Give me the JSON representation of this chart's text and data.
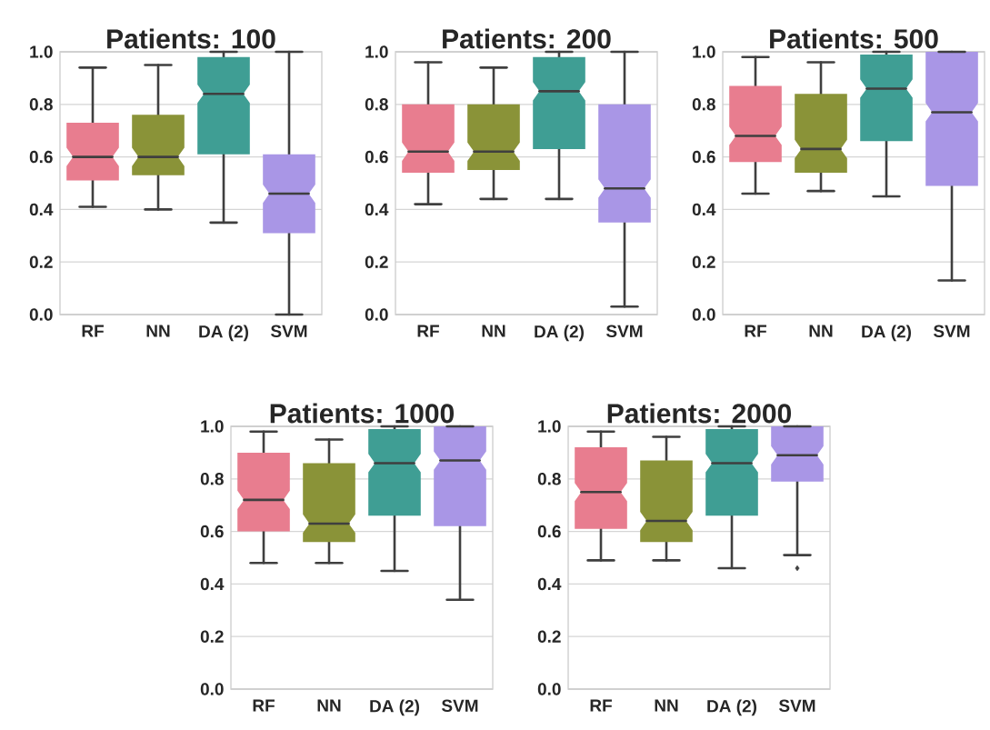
{
  "chart_data": [
    {
      "type": "box",
      "title": "Patients: 100",
      "categories": [
        "RF",
        "NN",
        "DA (2)",
        "SVM"
      ],
      "colors": [
        "#e87d8f",
        "#8a9338",
        "#3f9e94",
        "#a996e6"
      ],
      "ylim": [
        0,
        1
      ],
      "yticks": [
        {
          "value": 0,
          "label": "0.0"
        },
        {
          "value": 0.2,
          "label": "0.2"
        },
        {
          "value": 0.4,
          "label": "0.4"
        },
        {
          "value": 0.6,
          "label": "0.6"
        },
        {
          "value": 0.8,
          "label": "0.8"
        },
        {
          "value": 1,
          "label": "1.0"
        }
      ],
      "grid": "y",
      "boxes": [
        {
          "low": 0.41,
          "q1": 0.51,
          "median": 0.6,
          "q3": 0.73,
          "high": 0.94
        },
        {
          "low": 0.4,
          "q1": 0.53,
          "median": 0.6,
          "q3": 0.76,
          "high": 0.95
        },
        {
          "low": 0.35,
          "q1": 0.61,
          "median": 0.84,
          "q3": 0.98,
          "high": 1.0
        },
        {
          "low": 0.0,
          "q1": 0.31,
          "median": 0.46,
          "q3": 0.61,
          "high": 1.0
        }
      ]
    },
    {
      "type": "box",
      "title": "Patients: 200",
      "categories": [
        "RF",
        "NN",
        "DA (2)",
        "SVM"
      ],
      "colors": [
        "#e87d8f",
        "#8a9338",
        "#3f9e94",
        "#a996e6"
      ],
      "ylim": [
        0,
        1
      ],
      "yticks": [
        {
          "value": 0,
          "label": "0.0"
        },
        {
          "value": 0.2,
          "label": "0.2"
        },
        {
          "value": 0.4,
          "label": "0.4"
        },
        {
          "value": 0.6,
          "label": "0.6"
        },
        {
          "value": 0.8,
          "label": "0.8"
        },
        {
          "value": 1,
          "label": "1.0"
        }
      ],
      "grid": "y",
      "boxes": [
        {
          "low": 0.42,
          "q1": 0.54,
          "median": 0.62,
          "q3": 0.8,
          "high": 0.96
        },
        {
          "low": 0.44,
          "q1": 0.55,
          "median": 0.62,
          "q3": 0.8,
          "high": 0.94
        },
        {
          "low": 0.44,
          "q1": 0.63,
          "median": 0.85,
          "q3": 0.98,
          "high": 1.0
        },
        {
          "low": 0.03,
          "q1": 0.35,
          "median": 0.48,
          "q3": 0.8,
          "high": 1.0
        }
      ]
    },
    {
      "type": "box",
      "title": "Patients: 500",
      "categories": [
        "RF",
        "NN",
        "DA (2)",
        "SVM"
      ],
      "colors": [
        "#e87d8f",
        "#8a9338",
        "#3f9e94",
        "#a996e6"
      ],
      "ylim": [
        0,
        1
      ],
      "yticks": [
        {
          "value": 0,
          "label": "0.0"
        },
        {
          "value": 0.2,
          "label": "0.2"
        },
        {
          "value": 0.4,
          "label": "0.4"
        },
        {
          "value": 0.6,
          "label": "0.6"
        },
        {
          "value": 0.8,
          "label": "0.8"
        },
        {
          "value": 1,
          "label": "1.0"
        }
      ],
      "grid": "y",
      "boxes": [
        {
          "low": 0.46,
          "q1": 0.58,
          "median": 0.68,
          "q3": 0.87,
          "high": 0.98
        },
        {
          "low": 0.47,
          "q1": 0.54,
          "median": 0.63,
          "q3": 0.84,
          "high": 0.96
        },
        {
          "low": 0.45,
          "q1": 0.66,
          "median": 0.86,
          "q3": 0.99,
          "high": 1.0
        },
        {
          "low": 0.13,
          "q1": 0.49,
          "median": 0.77,
          "q3": 1.0,
          "high": 1.0
        }
      ]
    },
    {
      "type": "box",
      "title": "Patients: 1000",
      "categories": [
        "RF",
        "NN",
        "DA (2)",
        "SVM"
      ],
      "colors": [
        "#e87d8f",
        "#8a9338",
        "#3f9e94",
        "#a996e6"
      ],
      "ylim": [
        0,
        1
      ],
      "yticks": [
        {
          "value": 0,
          "label": "0.0"
        },
        {
          "value": 0.2,
          "label": "0.2"
        },
        {
          "value": 0.4,
          "label": "0.4"
        },
        {
          "value": 0.6,
          "label": "0.6"
        },
        {
          "value": 0.8,
          "label": "0.8"
        },
        {
          "value": 1,
          "label": "1.0"
        }
      ],
      "grid": "y",
      "boxes": [
        {
          "low": 0.48,
          "q1": 0.6,
          "median": 0.72,
          "q3": 0.9,
          "high": 0.98
        },
        {
          "low": 0.48,
          "q1": 0.56,
          "median": 0.63,
          "q3": 0.86,
          "high": 0.95
        },
        {
          "low": 0.45,
          "q1": 0.66,
          "median": 0.86,
          "q3": 0.99,
          "high": 1.0
        },
        {
          "low": 0.34,
          "q1": 0.62,
          "median": 0.87,
          "q3": 1.0,
          "high": 1.0
        }
      ]
    },
    {
      "type": "box",
      "title": "Patients: 2000",
      "categories": [
        "RF",
        "NN",
        "DA (2)",
        "SVM"
      ],
      "colors": [
        "#e87d8f",
        "#8a9338",
        "#3f9e94",
        "#a996e6"
      ],
      "ylim": [
        0,
        1
      ],
      "yticks": [
        {
          "value": 0,
          "label": "0.0"
        },
        {
          "value": 0.2,
          "label": "0.2"
        },
        {
          "value": 0.4,
          "label": "0.4"
        },
        {
          "value": 0.6,
          "label": "0.6"
        },
        {
          "value": 0.8,
          "label": "0.8"
        },
        {
          "value": 1,
          "label": "1.0"
        }
      ],
      "grid": "y",
      "boxes": [
        {
          "low": 0.49,
          "q1": 0.61,
          "median": 0.75,
          "q3": 0.92,
          "high": 0.98
        },
        {
          "low": 0.49,
          "q1": 0.56,
          "median": 0.64,
          "q3": 0.87,
          "high": 0.96
        },
        {
          "low": 0.46,
          "q1": 0.66,
          "median": 0.86,
          "q3": 0.99,
          "high": 1.0
        },
        {
          "low": 0.51,
          "q1": 0.79,
          "median": 0.89,
          "q3": 1.0,
          "high": 1.0,
          "outliers": [
            0.46
          ]
        }
      ]
    }
  ]
}
